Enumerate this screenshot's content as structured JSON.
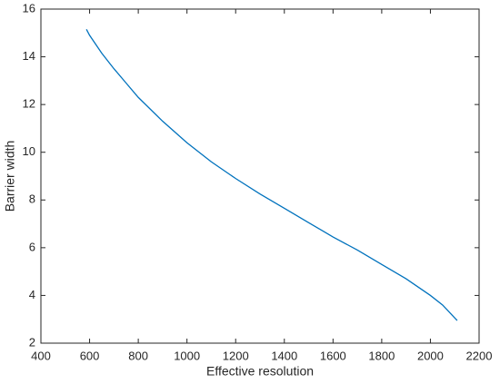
{
  "chart_data": {
    "type": "line",
    "x_label": "Effective resolution",
    "y_label": "Barrier width",
    "x": [
      587,
      600,
      650,
      700,
      750,
      800,
      900,
      1000,
      1100,
      1200,
      1300,
      1400,
      1500,
      1600,
      1700,
      1800,
      1900,
      2000,
      2050,
      2110
    ],
    "series": [
      {
        "name": "Barrier width",
        "color": "#0072bd",
        "values": [
          15.15,
          14.9,
          14.15,
          13.5,
          12.9,
          12.3,
          11.3,
          10.4,
          9.6,
          8.9,
          8.25,
          7.65,
          7.05,
          6.45,
          5.9,
          5.3,
          4.7,
          4.0,
          3.6,
          2.95
        ]
      }
    ],
    "xlim": [
      400,
      2200
    ],
    "xticks": [
      400,
      600,
      800,
      1000,
      1200,
      1400,
      1600,
      1800,
      2000,
      2200
    ],
    "ylim": [
      2,
      16
    ],
    "yticks": [
      2,
      4,
      6,
      8,
      10,
      12,
      14,
      16
    ],
    "grid": false
  }
}
